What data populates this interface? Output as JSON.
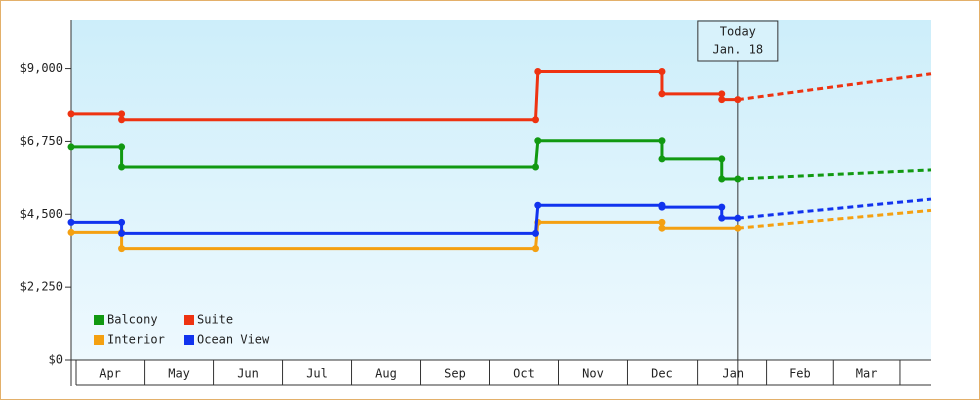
{
  "chart_data": {
    "type": "line",
    "xlim": [
      0,
      374
    ],
    "ylim": [
      0,
      10500
    ],
    "yticks": [
      {
        "value": 0,
        "label": "$0"
      },
      {
        "value": 2250,
        "label": "$2,250"
      },
      {
        "value": 4500,
        "label": "$4,500"
      },
      {
        "value": 6750,
        "label": "$6,750"
      },
      {
        "value": 9000,
        "label": "$9,000"
      }
    ],
    "xticks": [
      {
        "value": 17,
        "label": "Apr"
      },
      {
        "value": 47,
        "label": "May"
      },
      {
        "value": 77,
        "label": "Jun"
      },
      {
        "value": 107,
        "label": "Jul"
      },
      {
        "value": 137,
        "label": "Aug"
      },
      {
        "value": 167,
        "label": "Sep"
      },
      {
        "value": 197,
        "label": "Oct"
      },
      {
        "value": 227,
        "label": "Nov"
      },
      {
        "value": 257,
        "label": "Dec"
      },
      {
        "value": 288,
        "label": "Jan"
      },
      {
        "value": 317,
        "label": "Feb"
      },
      {
        "value": 346,
        "label": "Mar"
      }
    ],
    "today": {
      "x": 290,
      "label": [
        "Today",
        "Jan. 18"
      ]
    },
    "legend": "lower left",
    "series": [
      {
        "name": "Balcony",
        "color": "#119911",
        "x": [
          0,
          22,
          22,
          202,
          203,
          257,
          257,
          283,
          283,
          290
        ],
        "values": [
          6580,
          6580,
          5960,
          5960,
          6770,
          6770,
          6210,
          6210,
          5590,
          5590
        ],
        "forecast_x": 374,
        "forecast_value": 5870
      },
      {
        "name": "Suite",
        "color": "#ee3311",
        "x": [
          0,
          22,
          22,
          202,
          203,
          257,
          257,
          283,
          283,
          290
        ],
        "values": [
          7600,
          7600,
          7420,
          7420,
          8910,
          8910,
          8220,
          8220,
          8040,
          8040
        ],
        "forecast_x": 374,
        "forecast_value": 8840
      },
      {
        "name": "Interior",
        "color": "#f4a011",
        "x": [
          0,
          22,
          22,
          202,
          203,
          257,
          257,
          290
        ],
        "values": [
          3940,
          3940,
          3440,
          3440,
          4250,
          4250,
          4070,
          4070
        ],
        "forecast_x": 374,
        "forecast_value": 4620
      },
      {
        "name": "Ocean View",
        "color": "#1133ee",
        "x": [
          0,
          22,
          22,
          202,
          203,
          257,
          257,
          283,
          283,
          290
        ],
        "values": [
          4250,
          4250,
          3910,
          3910,
          4780,
          4780,
          4720,
          4720,
          4380,
          4380
        ],
        "forecast_x": 374,
        "forecast_value": 4970
      }
    ]
  }
}
